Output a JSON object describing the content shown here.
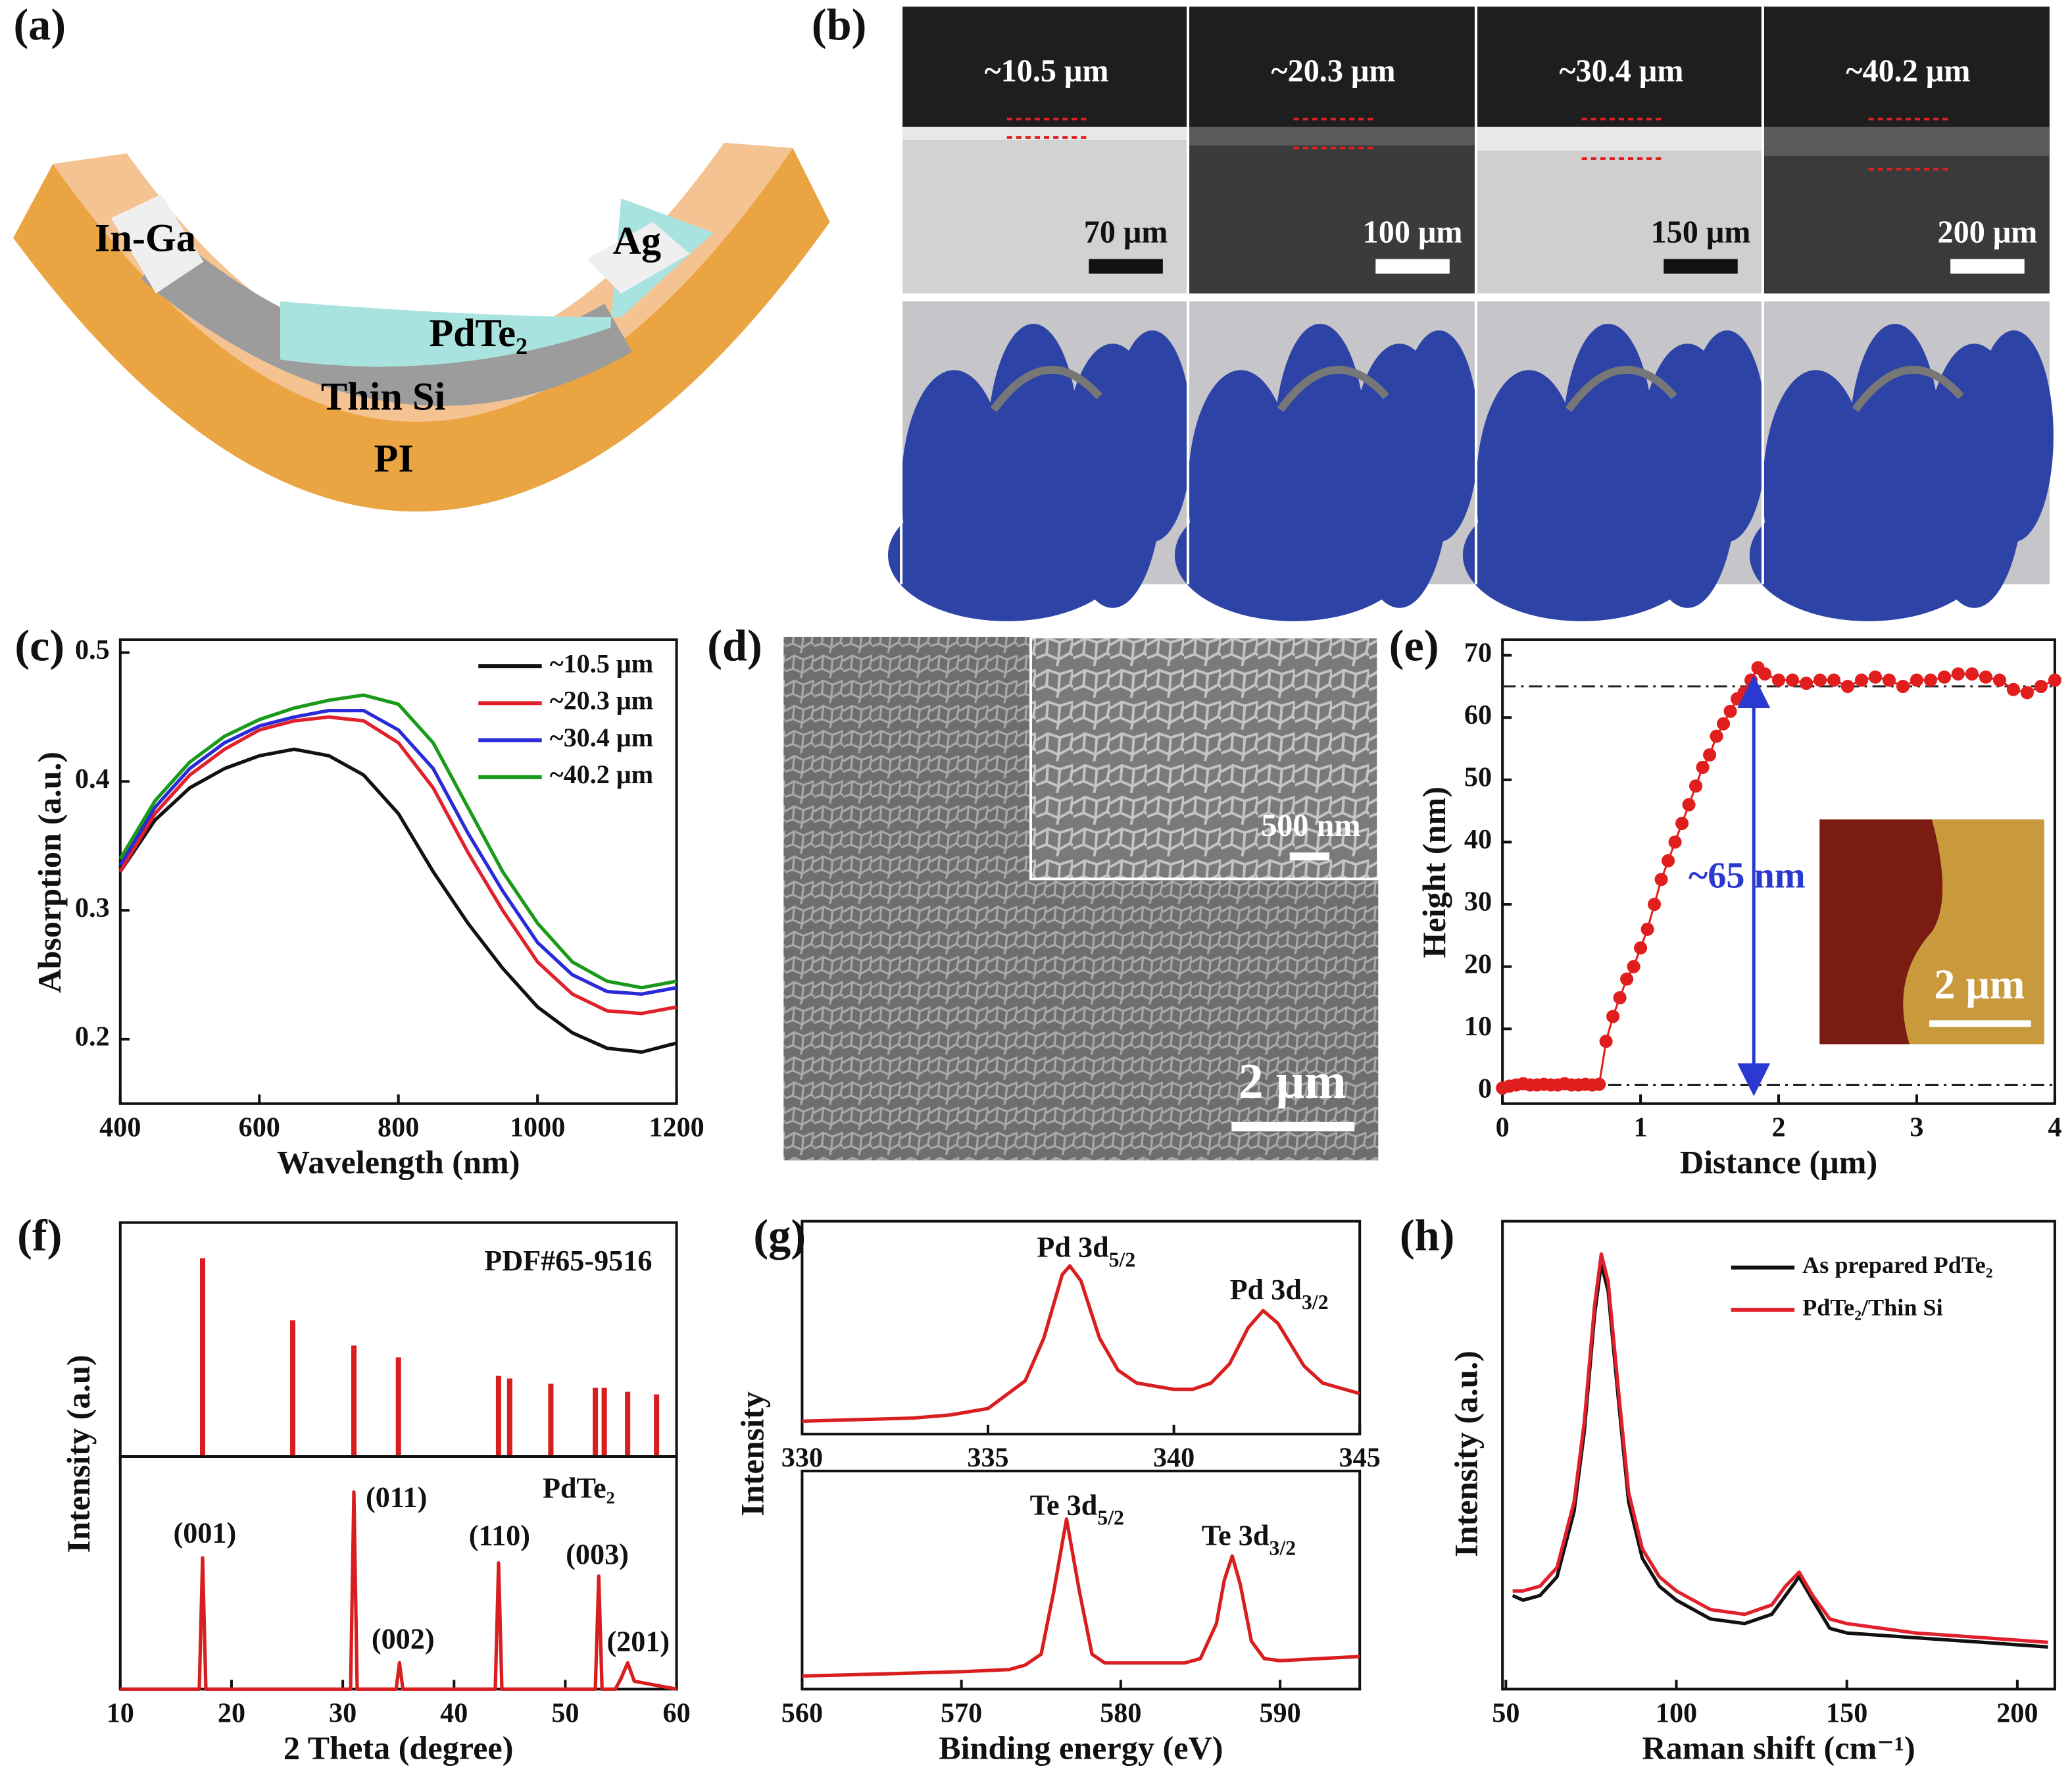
{
  "panel_labels": [
    "(a)",
    "(b)",
    "(c)",
    "(d)",
    "(e)",
    "(f)",
    "(g)",
    "(h)"
  ],
  "schematic": {
    "labels": [
      "In-Ga",
      "Ag",
      "PdTe₂",
      "Thin Si",
      "PI"
    ]
  },
  "sem_images": {
    "thicknesses": [
      "~10.5 μm",
      "~20.3 μm",
      "~30.4 μm",
      "~40.2 μm"
    ],
    "scale_bars": [
      "70 μm",
      "100 μm",
      "150 μm",
      "200 μm"
    ]
  },
  "sem_surface": {
    "inset_scale": "500 nm",
    "scale": "2 μm"
  },
  "chart_data": [
    {
      "type": "line",
      "xlabel": "Wavelength (nm)",
      "ylabel": "Absorption (a.u.)",
      "x": [
        400,
        450,
        500,
        550,
        600,
        650,
        700,
        750,
        800,
        850,
        900,
        950,
        1000,
        1050,
        1100,
        1150,
        1200
      ],
      "xlim": [
        400,
        1200
      ],
      "xticks": [
        400,
        600,
        800,
        1000,
        1200
      ],
      "ylim": [
        0.15,
        0.51
      ],
      "yticks": [
        0.2,
        0.3,
        0.4,
        0.5
      ],
      "legend": "upper right",
      "series": [
        {
          "name": "~10.5 μm",
          "color": "#111111",
          "values": [
            0.33,
            0.37,
            0.395,
            0.41,
            0.42,
            0.425,
            0.42,
            0.405,
            0.375,
            0.33,
            0.29,
            0.255,
            0.225,
            0.205,
            0.193,
            0.19,
            0.197
          ]
        },
        {
          "name": "~20.3 μm",
          "color": "#e0202a",
          "values": [
            0.33,
            0.375,
            0.405,
            0.425,
            0.44,
            0.447,
            0.45,
            0.447,
            0.43,
            0.395,
            0.345,
            0.3,
            0.26,
            0.235,
            0.222,
            0.22,
            0.225
          ]
        },
        {
          "name": "~30.4 μm",
          "color": "#2a2ad8",
          "values": [
            0.335,
            0.38,
            0.41,
            0.43,
            0.443,
            0.45,
            0.455,
            0.455,
            0.44,
            0.41,
            0.36,
            0.315,
            0.275,
            0.25,
            0.237,
            0.235,
            0.24
          ]
        },
        {
          "name": "~40.2 μm",
          "color": "#1a9a1a",
          "values": [
            0.34,
            0.385,
            0.415,
            0.435,
            0.448,
            0.457,
            0.463,
            0.467,
            0.46,
            0.43,
            0.38,
            0.33,
            0.29,
            0.26,
            0.245,
            0.24,
            0.245
          ]
        }
      ]
    },
    {
      "type": "scatter",
      "xlabel": "Distance (μm)",
      "ylabel": "Height (nm)",
      "color": "#e01e1e",
      "x": [
        0,
        0.05,
        0.1,
        0.15,
        0.2,
        0.25,
        0.3,
        0.35,
        0.4,
        0.45,
        0.5,
        0.55,
        0.6,
        0.65,
        0.7,
        0.75,
        0.8,
        0.85,
        0.9,
        0.95,
        1.0,
        1.05,
        1.1,
        1.15,
        1.2,
        1.25,
        1.3,
        1.35,
        1.4,
        1.45,
        1.5,
        1.55,
        1.6,
        1.65,
        1.7,
        1.75,
        1.8,
        1.85,
        1.9,
        2.0,
        2.1,
        2.2,
        2.3,
        2.4,
        2.5,
        2.6,
        2.7,
        2.8,
        2.9,
        3.0,
        3.1,
        3.2,
        3.3,
        3.4,
        3.5,
        3.6,
        3.7,
        3.8,
        3.9,
        4.0
      ],
      "values": [
        0.5,
        0.8,
        1,
        1.2,
        1,
        1,
        1.1,
        1,
        1,
        1.2,
        1,
        1,
        1.1,
        1,
        1.1,
        8,
        12,
        15,
        18,
        20,
        23,
        26,
        30,
        34,
        37,
        40,
        43,
        46,
        49,
        52,
        54,
        57,
        59,
        61,
        63,
        64,
        66,
        68,
        67,
        66,
        66,
        65.5,
        66,
        66,
        65,
        66,
        66.5,
        66,
        65,
        66,
        66,
        66.5,
        67,
        67,
        66.5,
        66,
        64.5,
        64,
        65,
        66
      ],
      "xlim": [
        0,
        4
      ],
      "xticks": [
        0,
        1,
        2,
        3,
        4
      ],
      "ylim": [
        -2,
        72.5
      ],
      "yticks": [
        0,
        10,
        20,
        30,
        40,
        50,
        60,
        70
      ],
      "reference_lines": [
        65,
        1
      ],
      "annotations": [
        "~65 nm"
      ],
      "inset_label": "2 μm"
    },
    {
      "type": "stem",
      "ylabel": "Intensity (a.u)",
      "color": "#d81e1e",
      "x": [
        17.4,
        25.5,
        31,
        35,
        44,
        45,
        48.7,
        52.7,
        53.5,
        55.6,
        58.2
      ],
      "values": [
        150,
        103,
        84,
        75,
        61,
        59,
        55,
        52,
        52,
        49,
        47
      ],
      "xlim": [
        10,
        60
      ],
      "ylim": [
        0,
        177
      ],
      "annotations": [
        "PDF#65-9516"
      ]
    },
    {
      "type": "line",
      "xlabel": "2 Theta (degree)",
      "color": "#d81e1e",
      "x": [
        10,
        17.1,
        17.4,
        17.7,
        30.7,
        31,
        31.3,
        34.8,
        35.1,
        35.4,
        43.7,
        44,
        44.3,
        52.7,
        53,
        53.3,
        54.5,
        55,
        55.6,
        56.2,
        60
      ],
      "values": [
        0,
        0,
        100,
        0,
        0,
        150,
        0,
        0,
        20,
        0,
        0,
        96,
        0,
        0,
        86,
        0,
        0,
        8,
        20,
        6,
        0
      ],
      "xlim": [
        10,
        60
      ],
      "xticks": [
        10,
        20,
        30,
        40,
        50,
        60
      ],
      "ylim": [
        0,
        177
      ],
      "annotations": [
        "PdTe₂",
        "(001)",
        "(011)",
        "(002)",
        "(110)",
        "(003)",
        "(201)"
      ]
    },
    {
      "type": "line",
      "ylabel": "Intensity",
      "color": "#d81e1e",
      "x": [
        330,
        331,
        332,
        333,
        334,
        335,
        336,
        336.5,
        337,
        337.2,
        337.5,
        338,
        338.5,
        339,
        340,
        340.5,
        341,
        341.5,
        342,
        342.4,
        342.8,
        343.5,
        344,
        345
      ],
      "values": [
        6,
        6.5,
        7,
        7.5,
        9,
        12,
        25,
        45,
        75,
        79,
        72,
        45,
        30,
        24,
        21,
        21,
        24,
        33,
        50,
        58,
        52,
        32,
        24,
        19
      ],
      "xlim": [
        330,
        345
      ],
      "xticks": [
        330,
        335,
        340,
        345
      ],
      "ylim": [
        0,
        100
      ],
      "annotations": [
        {
          "base": "Pd 3d",
          "sub": "5/2"
        },
        {
          "base": "Pd 3d",
          "sub": "3/2"
        }
      ]
    },
    {
      "type": "line",
      "xlabel": "Binding energy (eV)",
      "color": "#d81e1e",
      "x": [
        560,
        565,
        570,
        573,
        574,
        575,
        575.8,
        576.6,
        577.4,
        578.2,
        579,
        582,
        584,
        585,
        586,
        586.5,
        587,
        587.5,
        588.2,
        589,
        590,
        595
      ],
      "values": [
        6,
        7,
        8,
        9,
        11,
        16,
        45,
        78,
        45,
        16,
        12,
        12,
        12,
        14,
        30,
        50,
        61,
        48,
        22,
        14,
        13,
        15
      ],
      "xlim": [
        560,
        595
      ],
      "xticks": [
        560,
        570,
        580,
        590
      ],
      "ylim": [
        0,
        100
      ],
      "annotations": [
        {
          "base": "Te 3d",
          "sub": "5/2"
        },
        {
          "base": "Te 3d",
          "sub": "3/2"
        }
      ]
    },
    {
      "type": "line",
      "xlabel": "Raman shift (cm⁻¹)",
      "ylabel": "Intensity (a.u.)",
      "legend": "upper right",
      "x": [
        52,
        55,
        60,
        65,
        70,
        73,
        76,
        78,
        80,
        83,
        86,
        90,
        95,
        100,
        110,
        120,
        128,
        132,
        136,
        140,
        145,
        150,
        170,
        190,
        209
      ],
      "xlim": [
        49,
        211
      ],
      "xticks": [
        50,
        100,
        150,
        200
      ],
      "ylim": [
        0,
        100
      ],
      "series": [
        {
          "name": "As prepared PdTe₂",
          "color": "#111111",
          "values": [
            20,
            19,
            20,
            24,
            38,
            55,
            80,
            91,
            85,
            62,
            40,
            28,
            22,
            19,
            15,
            14,
            16,
            20,
            24,
            19,
            13,
            12,
            11,
            10,
            9
          ]
        },
        {
          "name": "PdTe₂/Thin Si",
          "color": "#e0202a",
          "values": [
            21,
            21,
            22,
            26,
            40,
            57,
            82,
            93,
            87,
            64,
            42,
            30,
            24,
            21,
            17,
            16,
            18,
            22,
            25,
            20,
            15,
            14,
            12,
            11,
            10
          ]
        }
      ]
    }
  ]
}
